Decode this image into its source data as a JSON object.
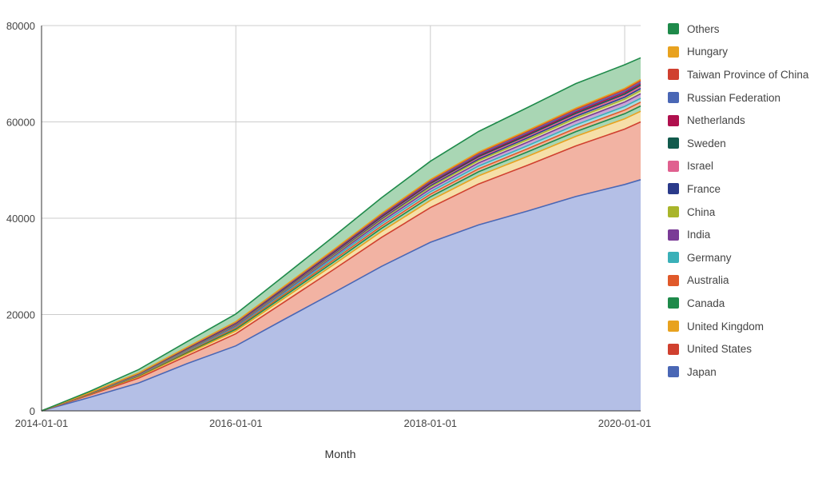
{
  "chart_data": {
    "type": "area",
    "stacked": true,
    "xlabel": "Month",
    "ylabel": "",
    "ylim": [
      0,
      80000
    ],
    "xlim": [
      "2014-01-01",
      "2020-03-01"
    ],
    "x_ticks": [
      "2014-01-01",
      "2016-01-01",
      "2018-01-01",
      "2020-01-01"
    ],
    "y_ticks": [
      0,
      20000,
      40000,
      60000,
      80000
    ],
    "grid": true,
    "legend_position": "right",
    "x": [
      "2014-01-01",
      "2014-07-01",
      "2015-01-01",
      "2015-07-01",
      "2016-01-01",
      "2016-07-01",
      "2017-01-01",
      "2017-07-01",
      "2018-01-01",
      "2018-07-01",
      "2019-01-01",
      "2019-07-01",
      "2020-01-01",
      "2020-03-01"
    ],
    "series": [
      {
        "name": "Japan",
        "color": "#4a67b5",
        "fill": "#b4bfe6",
        "values": [
          0,
          2800,
          5800,
          9800,
          13500,
          19000,
          24500,
          30000,
          35000,
          38600,
          41500,
          44500,
          47000,
          48000
        ]
      },
      {
        "name": "United States",
        "color": "#d0402f",
        "fill": "#f2b3a3",
        "values": [
          0,
          500,
          1000,
          1600,
          2500,
          3600,
          4800,
          6000,
          7200,
          8500,
          9500,
          10500,
          11500,
          12000
        ]
      },
      {
        "name": "United Kingdom",
        "color": "#e8a21f",
        "fill": "#f6dfa8",
        "values": [
          0,
          150,
          300,
          450,
          600,
          800,
          1000,
          1250,
          1500,
          1700,
          1850,
          2000,
          2150,
          2200
        ]
      },
      {
        "name": "Canada",
        "color": "#1e8a4a",
        "fill": "#a9d6b4",
        "values": [
          0,
          60,
          150,
          250,
          350,
          450,
          550,
          650,
          750,
          850,
          920,
          980,
          1050,
          1100
        ]
      },
      {
        "name": "Australia",
        "color": "#e0592a",
        "fill": "#f3b79b",
        "values": [
          0,
          50,
          120,
          200,
          280,
          350,
          420,
          480,
          540,
          600,
          650,
          700,
          760,
          800
        ]
      },
      {
        "name": "Germany",
        "color": "#3ab0b8",
        "fill": "#a8dde0",
        "values": [
          0,
          40,
          100,
          170,
          240,
          310,
          380,
          450,
          520,
          580,
          640,
          700,
          760,
          800
        ]
      },
      {
        "name": "India",
        "color": "#7a3b96",
        "fill": "#c7a6d6",
        "values": [
          0,
          30,
          80,
          140,
          210,
          290,
          380,
          470,
          560,
          650,
          740,
          820,
          900,
          950
        ]
      },
      {
        "name": "China",
        "color": "#a9b52b",
        "fill": "#dde2a2",
        "values": [
          0,
          20,
          60,
          110,
          160,
          220,
          290,
          360,
          420,
          480,
          530,
          570,
          610,
          650
        ]
      },
      {
        "name": "France",
        "color": "#2a3a8a",
        "fill": "#a4acd2",
        "values": [
          0,
          20,
          50,
          90,
          130,
          170,
          210,
          250,
          290,
          330,
          360,
          390,
          420,
          440
        ]
      },
      {
        "name": "Israel",
        "color": "#e0608f",
        "fill": "#f3b6cc",
        "values": [
          0,
          15,
          40,
          70,
          100,
          130,
          160,
          190,
          220,
          250,
          280,
          310,
          340,
          350
        ]
      },
      {
        "name": "Sweden",
        "color": "#115a4c",
        "fill": "#9fc3b9",
        "values": [
          0,
          15,
          40,
          70,
          100,
          130,
          160,
          190,
          220,
          250,
          270,
          290,
          310,
          320
        ]
      },
      {
        "name": "Netherlands",
        "color": "#b0104e",
        "fill": "#dfa0b8",
        "values": [
          0,
          15,
          40,
          70,
          100,
          130,
          160,
          190,
          220,
          250,
          270,
          290,
          310,
          320
        ]
      },
      {
        "name": "Russian Federation",
        "color": "#4a67b5",
        "fill": "#b4bfe6",
        "values": [
          0,
          15,
          35,
          60,
          90,
          120,
          150,
          180,
          210,
          240,
          260,
          280,
          300,
          310
        ]
      },
      {
        "name": "Taiwan Province of China",
        "color": "#d0402f",
        "fill": "#f2b3a3",
        "values": [
          0,
          15,
          35,
          60,
          90,
          120,
          150,
          180,
          210,
          240,
          260,
          280,
          300,
          310
        ]
      },
      {
        "name": "Hungary",
        "color": "#e8a21f",
        "fill": "#f6dfa8",
        "values": [
          0,
          10,
          25,
          45,
          70,
          95,
          120,
          145,
          170,
          195,
          215,
          235,
          250,
          260
        ]
      },
      {
        "name": "Others",
        "color": "#1e8a4a",
        "fill": "#a9d6b4",
        "values": [
          0,
          300,
          700,
          1150,
          1600,
          2150,
          2700,
          3250,
          3800,
          4300,
          4750,
          5100,
          4900,
          4500
        ]
      }
    ]
  }
}
